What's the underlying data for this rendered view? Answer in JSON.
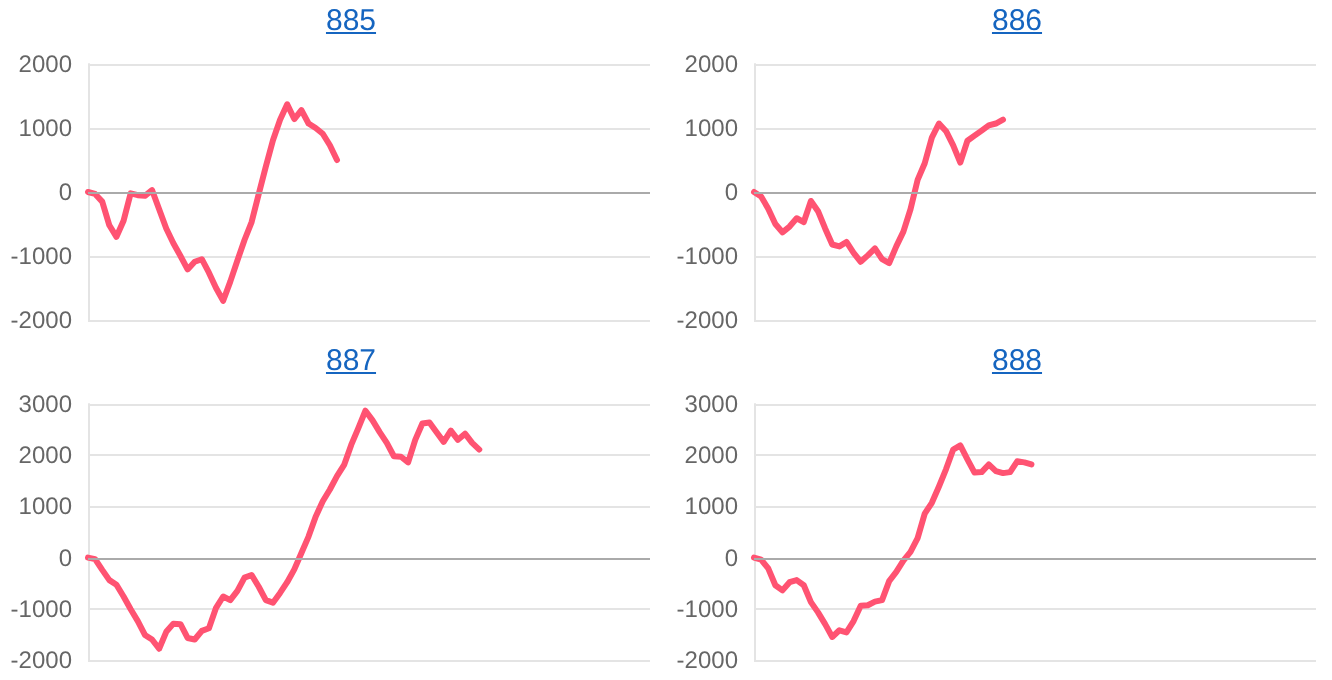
{
  "chart_data": [
    {
      "type": "line",
      "title": "885",
      "categories": [
        null,
        null,
        null,
        null,
        null,
        null,
        null,
        null,
        null,
        null,
        null,
        null,
        null,
        null,
        null,
        null,
        null,
        null,
        null,
        null,
        null,
        null,
        null,
        null,
        null,
        null,
        null,
        null,
        null,
        null,
        null,
        null,
        null,
        null,
        null,
        null,
        null,
        null,
        null,
        null,
        null,
        null,
        null,
        null,
        null,
        null,
        null,
        null,
        null,
        null,
        null,
        null,
        null,
        null,
        null,
        null,
        null,
        null,
        null,
        null,
        null,
        null,
        null,
        null,
        null,
        null,
        null,
        null,
        null,
        null,
        null,
        null,
        null,
        null,
        null,
        null,
        null,
        null,
        null,
        null
      ],
      "series": [
        {
          "color": "#ff5372",
          "values": [
            0,
            -30,
            -150,
            -520,
            -700,
            -450,
            -20,
            -50,
            -60,
            30,
            -270,
            -570,
            -800,
            -1000,
            -1210,
            -1090,
            -1050,
            -1260,
            -1500,
            -1700,
            -1400,
            -1070,
            -750,
            -470,
            -30,
            400,
            810,
            1130,
            1370,
            1140,
            1280,
            1070,
            1000,
            910,
            730,
            500,
            null,
            null,
            null,
            null,
            null,
            null,
            null,
            null,
            null,
            null,
            null,
            null,
            null,
            null,
            null,
            null,
            null,
            null,
            null,
            null,
            null,
            null,
            null,
            null,
            null,
            null,
            null,
            null,
            null,
            null,
            null,
            null,
            null,
            null,
            null,
            null,
            null,
            null,
            null,
            null,
            null,
            null,
            null,
            null
          ]
        }
      ],
      "ylim": [
        -2000,
        2000
      ],
      "yticks": [
        -2000,
        -1000,
        0,
        1000,
        2000
      ],
      "grid": "y",
      "tick_labels": "y",
      "marker": "none",
      "line_style": "solid"
    },
    {
      "type": "line",
      "title": "886",
      "categories": [
        null,
        null,
        null,
        null,
        null,
        null,
        null,
        null,
        null,
        null,
        null,
        null,
        null,
        null,
        null,
        null,
        null,
        null,
        null,
        null,
        null,
        null,
        null,
        null,
        null,
        null,
        null,
        null,
        null,
        null,
        null,
        null,
        null,
        null,
        null,
        null,
        null,
        null,
        null,
        null,
        null,
        null,
        null,
        null,
        null,
        null,
        null,
        null,
        null,
        null,
        null,
        null,
        null,
        null,
        null,
        null,
        null,
        null,
        null,
        null,
        null,
        null,
        null,
        null,
        null,
        null,
        null,
        null,
        null,
        null,
        null,
        null,
        null,
        null,
        null,
        null,
        null,
        null,
        null,
        null
      ],
      "series": [
        {
          "color": "#ff5372",
          "values": [
            0,
            -70,
            -260,
            -500,
            -630,
            -540,
            -410,
            -470,
            -140,
            -300,
            -570,
            -820,
            -850,
            -780,
            -950,
            -1090,
            -990,
            -880,
            -1050,
            -1110,
            -850,
            -620,
            -270,
            190,
            450,
            850,
            1070,
            950,
            730,
            460,
            800,
            880,
            960,
            1040,
            1070,
            1130,
            null,
            null,
            null,
            null,
            null,
            null,
            null,
            null,
            null,
            null,
            null,
            null,
            null,
            null,
            null,
            null,
            null,
            null,
            null,
            null,
            null,
            null,
            null,
            null,
            null,
            null,
            null,
            null,
            null,
            null,
            null,
            null,
            null,
            null,
            null,
            null,
            null,
            null,
            null,
            null,
            null,
            null,
            null,
            null
          ]
        }
      ],
      "ylim": [
        -2000,
        2000
      ],
      "yticks": [
        -2000,
        -1000,
        0,
        1000,
        2000
      ],
      "grid": "y",
      "tick_labels": "y",
      "marker": "none",
      "line_style": "solid"
    },
    {
      "type": "line",
      "title": "887",
      "categories": [
        null,
        null,
        null,
        null,
        null,
        null,
        null,
        null,
        null,
        null,
        null,
        null,
        null,
        null,
        null,
        null,
        null,
        null,
        null,
        null,
        null,
        null,
        null,
        null,
        null,
        null,
        null,
        null,
        null,
        null,
        null,
        null,
        null,
        null,
        null,
        null,
        null,
        null,
        null,
        null,
        null,
        null,
        null,
        null,
        null,
        null,
        null,
        null,
        null,
        null,
        null,
        null,
        null,
        null,
        null,
        null,
        null,
        null,
        null,
        null,
        null,
        null,
        null,
        null,
        null,
        null,
        null,
        null,
        null,
        null,
        null,
        null,
        null,
        null,
        null,
        null,
        null,
        null,
        null,
        null
      ],
      "series": [
        {
          "color": "#ff5372",
          "values": [
            0,
            -30,
            -240,
            -440,
            -530,
            -760,
            -1010,
            -1240,
            -1510,
            -1600,
            -1780,
            -1450,
            -1290,
            -1300,
            -1570,
            -1600,
            -1430,
            -1380,
            -980,
            -760,
            -830,
            -650,
            -390,
            -340,
            -570,
            -830,
            -880,
            -690,
            -480,
            -230,
            90,
            410,
            800,
            1100,
            1330,
            1590,
            1810,
            2200,
            2530,
            2870,
            2680,
            2450,
            2240,
            1980,
            1970,
            1860,
            2300,
            2620,
            2640,
            2450,
            2260,
            2480,
            2300,
            2420,
            2240,
            2110,
            null,
            null,
            null,
            null,
            null,
            null,
            null,
            null,
            null,
            null,
            null,
            null,
            null,
            null,
            null,
            null,
            null,
            null,
            null,
            null,
            null,
            null,
            null,
            null
          ]
        }
      ],
      "ylim": [
        -2000,
        3000
      ],
      "yticks": [
        -2000,
        -1000,
        0,
        1000,
        2000,
        3000
      ],
      "grid": "y",
      "tick_labels": "y",
      "marker": "none",
      "line_style": "solid"
    },
    {
      "type": "line",
      "title": "888",
      "categories": [
        null,
        null,
        null,
        null,
        null,
        null,
        null,
        null,
        null,
        null,
        null,
        null,
        null,
        null,
        null,
        null,
        null,
        null,
        null,
        null,
        null,
        null,
        null,
        null,
        null,
        null,
        null,
        null,
        null,
        null,
        null,
        null,
        null,
        null,
        null,
        null,
        null,
        null,
        null,
        null,
        null,
        null,
        null,
        null,
        null,
        null,
        null,
        null,
        null,
        null,
        null,
        null,
        null,
        null,
        null,
        null,
        null,
        null,
        null,
        null,
        null,
        null,
        null,
        null,
        null,
        null,
        null,
        null,
        null,
        null,
        null,
        null,
        null,
        null,
        null,
        null,
        null,
        null,
        null,
        null
      ],
      "series": [
        {
          "color": "#ff5372",
          "values": [
            0,
            -40,
            -210,
            -540,
            -640,
            -480,
            -440,
            -540,
            -870,
            -1070,
            -1300,
            -1550,
            -1420,
            -1460,
            -1240,
            -940,
            -930,
            -860,
            -830,
            -460,
            -280,
            -60,
            110,
            380,
            860,
            1070,
            1390,
            1730,
            2110,
            2190,
            1920,
            1660,
            1670,
            1820,
            1690,
            1650,
            1670,
            1880,
            1860,
            1820,
            null,
            null,
            null,
            null,
            null,
            null,
            null,
            null,
            null,
            null,
            null,
            null,
            null,
            null,
            null,
            null,
            null,
            null,
            null,
            null,
            null,
            null,
            null,
            null,
            null,
            null,
            null,
            null,
            null,
            null,
            null,
            null,
            null,
            null,
            null,
            null,
            null,
            null,
            null,
            null
          ]
        }
      ],
      "ylim": [
        -2000,
        3000
      ],
      "yticks": [
        -2000,
        -1000,
        0,
        1000,
        2000,
        3000
      ],
      "grid": "y",
      "tick_labels": "y",
      "marker": "none",
      "line_style": "solid"
    }
  ]
}
